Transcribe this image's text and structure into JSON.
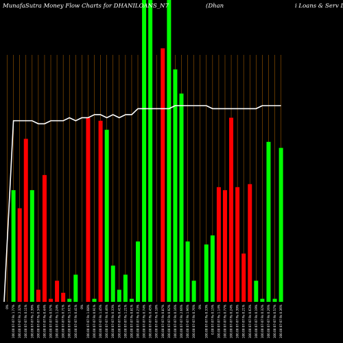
{
  "colors": {
    "background": "#000000",
    "grid": "#a05a00",
    "up": "#00ff00",
    "down": "#ff0000",
    "line": "#ffffff",
    "text": "#ffffff"
  },
  "chart_data": {
    "type": "bar",
    "title": "MunafaSutra  Money Flow  Charts for DHANILOANS_N7",
    "title_right": "(Dhan",
    "title_far_right": "i  Loans & Serv   Li",
    "ylim": [
      0,
      100
    ],
    "grid": true,
    "categories": [
      "0%",
      "100.00 07-07 Rs 1.77%",
      "100.00 07-07 Rs 2.32%",
      "100.00 07-07 Rs 0.11%",
      "100.00 07-07 Rs 2.39%",
      "100.00 07-07 Rs 0.34%",
      "100.00 07-07 Rs 0.44%",
      "100.00 07-07 Rs 0.57%",
      "100.00 07-07 Rs 1.24%",
      "100.00 07-07 Rs 0.71%",
      "100.00 07-07 Rs 1.61%",
      "100.00 07-07 Rs 0.41%",
      "0%",
      "100.00 07-07 Rs 1.08%",
      "100.00 07-07 Rs 0.91%",
      "100.00 07-07 Rs 1.45%",
      "100.00 07-07 Rs 0.46%",
      "100.00 07-07 Rs 0.33%",
      "100.00 07-07 Rs 0.41%",
      "100.00 07-07 Rs 1.21%",
      "100.00 07-07 Rs 0.81%",
      "100.00 07-07 Rs 0.23%",
      "100.00 07-07 Rs 0.74%",
      "100.00 07-07 Rs 0.45%",
      "100.00 07-07 Rs 0.18%",
      "100.00 07-07 Rs 0.87%",
      "100.00 07-07 Rs 0.92%",
      "100.00 07-07 Rs 0.16%",
      "100.00 07-07 Rs 2.66%",
      "100.00 07-07 Rs 1.96%",
      "100.00 07-07 Rs 0.76%",
      "0%",
      "100.00 07-07 Rs 0.33%",
      "0.00 07-07 Rs 0.15%",
      "100.00 07-07 Rs 1.14%",
      "100.00 07-07 Rs 0.77%",
      "100.00 07-07 Rs 0.24%",
      "100.00 07-07 Rs 0.39%",
      "100.00 07-07 Rs 0.21%",
      "100.00 07-07 Rs 0.63%",
      "100.00 07-07 Rs 0.19%",
      "100.00 07-07 Rs 0.32%",
      "100.00 07-07 Rs 0.26%",
      "100.00 07-07 Rs 0.57%",
      "100.00 07-07 Rs 0.36%"
    ],
    "series": [
      {
        "values": [
          0,
          37,
          31,
          54,
          37,
          4,
          42,
          1,
          7,
          3,
          1,
          9,
          0,
          61,
          1,
          60,
          57,
          12,
          4,
          9,
          1,
          20,
          100,
          100,
          0,
          84,
          100,
          77,
          69,
          20,
          7,
          0,
          19,
          22,
          38,
          37,
          61,
          38,
          16,
          39,
          7,
          1,
          53,
          1,
          51
        ],
        "colors": [
          "none",
          "up",
          "down",
          "down",
          "up",
          "down",
          "down",
          "down",
          "down",
          "down",
          "up",
          "up",
          "none",
          "down",
          "up",
          "down",
          "up",
          "up",
          "up",
          "up",
          "up",
          "up",
          "up",
          "up",
          "none",
          "down",
          "up",
          "up",
          "up",
          "up",
          "up",
          "none",
          "up",
          "up",
          "down",
          "down",
          "down",
          "down",
          "down",
          "down",
          "up",
          "up",
          "up",
          "up",
          "up"
        ]
      },
      {
        "type": "line",
        "values": [
          0,
          60,
          60,
          60,
          60,
          59,
          59,
          60,
          60,
          60,
          61,
          60,
          61,
          61,
          62,
          62,
          61,
          62,
          61,
          62,
          62,
          64,
          64,
          64,
          64,
          64,
          64,
          65,
          65,
          65,
          65,
          65,
          65,
          64,
          64,
          64,
          64,
          64,
          64,
          64,
          64,
          65,
          65,
          65,
          65
        ]
      }
    ]
  }
}
